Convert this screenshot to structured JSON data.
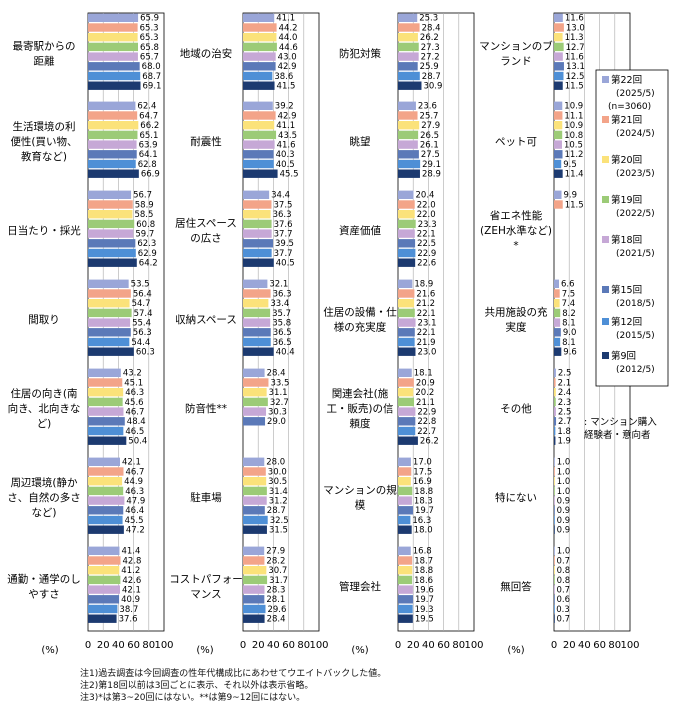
{
  "chart_data": {
    "type": "bar",
    "orientation": "horizontal",
    "xlim": [
      0,
      100
    ],
    "xticks": [
      "0",
      "20",
      "40",
      "60",
      "80",
      "100"
    ],
    "xlabel": "(%)",
    "series": [
      {
        "name": "第22回",
        "period": "(2025/5)",
        "n": "(n=3060)",
        "color": "#9aa6d8"
      },
      {
        "name": "第21回",
        "period": "(2024/5)",
        "color": "#f3a489"
      },
      {
        "name": "第20回",
        "period": "(2023/5)",
        "color": "#fbe27a"
      },
      {
        "name": "第19回",
        "period": "(2022/5)",
        "color": "#9ccb77"
      },
      {
        "name": "第18回",
        "period": "(2021/5)",
        "color": "#c6a8d6"
      },
      {
        "name": "第15回",
        "period": "(2018/5)",
        "color": "#5b79b8"
      },
      {
        "name": "第12回",
        "period": "(2015/5)",
        "color": "#4e8fd6"
      },
      {
        "name": "第9回",
        "period": "(2012/5)",
        "color": "#1c3a70"
      }
    ],
    "panels": [
      {
        "categories": [
          {
            "label": [
              "最寄駅からの",
              "距離"
            ],
            "values": [
              65.9,
              65.3,
              65.3,
              65.8,
              65.7,
              68.0,
              68.7,
              69.1
            ]
          },
          {
            "label": [
              "生活環境の利",
              "便性(買い物、",
              "教育など)"
            ],
            "values": [
              62.4,
              64.7,
              66.2,
              65.1,
              63.9,
              64.1,
              62.8,
              66.9
            ]
          },
          {
            "label": [
              "日当たり・採光"
            ],
            "values": [
              56.7,
              58.9,
              58.5,
              60.8,
              59.7,
              62.3,
              62.9,
              64.2
            ]
          },
          {
            "label": [
              "間取り"
            ],
            "values": [
              53.5,
              56.4,
              54.7,
              57.4,
              55.4,
              56.3,
              54.4,
              60.3
            ]
          },
          {
            "label": [
              "住居の向き(南",
              "向き、北向きな",
              "ど)"
            ],
            "values": [
              43.2,
              45.1,
              46.3,
              45.6,
              46.7,
              48.4,
              46.5,
              50.4
            ]
          },
          {
            "label": [
              "周辺環境(静か",
              "さ、自然の多さ",
              "など)"
            ],
            "values": [
              42.1,
              46.7,
              44.9,
              46.3,
              47.9,
              46.4,
              45.5,
              47.2
            ]
          },
          {
            "label": [
              "通勤・通学のし",
              "やすさ"
            ],
            "values": [
              41.4,
              42.8,
              41.2,
              42.6,
              42.1,
              40.9,
              38.7,
              37.6
            ]
          }
        ]
      },
      {
        "categories": [
          {
            "label": [
              "地域の治安"
            ],
            "values": [
              41.1,
              44.2,
              44.0,
              44.6,
              43.0,
              42.9,
              38.6,
              41.5
            ]
          },
          {
            "label": [
              "耐震性"
            ],
            "values": [
              39.2,
              42.9,
              41.1,
              43.5,
              41.6,
              40.3,
              40.5,
              45.5
            ]
          },
          {
            "label": [
              "居住スペース",
              "の広さ"
            ],
            "values": [
              34.4,
              37.5,
              36.3,
              37.6,
              37.7,
              39.5,
              37.7,
              40.5
            ]
          },
          {
            "label": [
              "収納スペース"
            ],
            "values": [
              32.1,
              36.3,
              33.4,
              35.7,
              35.8,
              36.5,
              36.5,
              40.4
            ]
          },
          {
            "label": [
              "防音性**"
            ],
            "values": [
              28.4,
              33.5,
              31.1,
              32.7,
              30.3,
              29.0,
              null,
              null
            ]
          },
          {
            "label": [
              "駐車場"
            ],
            "values": [
              28.0,
              30.0,
              30.5,
              31.4,
              31.2,
              28.7,
              32.5,
              31.5
            ]
          },
          {
            "label": [
              "コストパフォー",
              "マンス"
            ],
            "values": [
              27.9,
              28.2,
              30.7,
              31.7,
              28.3,
              28.1,
              29.6,
              28.4
            ]
          }
        ]
      },
      {
        "categories": [
          {
            "label": [
              "防犯対策"
            ],
            "values": [
              25.3,
              28.4,
              26.2,
              27.3,
              27.2,
              25.9,
              28.7,
              30.9
            ]
          },
          {
            "label": [
              "眺望"
            ],
            "values": [
              23.6,
              25.7,
              27.9,
              26.5,
              26.1,
              27.5,
              29.1,
              28.9
            ]
          },
          {
            "label": [
              "資産価値"
            ],
            "values": [
              20.4,
              22.0,
              22.0,
              23.3,
              22.1,
              22.5,
              22.9,
              22.6
            ]
          },
          {
            "label": [
              "住居の設備・仕",
              "様の充実度"
            ],
            "values": [
              18.9,
              21.6,
              21.2,
              22.1,
              23.1,
              22.1,
              21.9,
              23.0
            ]
          },
          {
            "label": [
              "関連会社(施",
              "工・販売)の信",
              "頼度"
            ],
            "values": [
              18.1,
              20.9,
              20.2,
              21.1,
              22.9,
              22.8,
              22.7,
              26.2
            ]
          },
          {
            "label": [
              "マンションの規",
              "模"
            ],
            "values": [
              17.0,
              17.5,
              16.9,
              18.8,
              18.3,
              19.7,
              16.3,
              18.0
            ]
          },
          {
            "label": [
              "管理会社"
            ],
            "values": [
              16.8,
              18.7,
              18.8,
              18.6,
              19.6,
              19.7,
              19.3,
              19.5
            ]
          }
        ]
      },
      {
        "categories": [
          {
            "label": [
              "マンションのブ",
              "ランド"
            ],
            "values": [
              11.6,
              13.0,
              11.3,
              12.7,
              11.6,
              13.1,
              12.5,
              11.5
            ]
          },
          {
            "label": [
              "ペット可"
            ],
            "values": [
              10.9,
              11.1,
              10.9,
              10.8,
              10.5,
              11.2,
              9.5,
              11.4
            ]
          },
          {
            "label": [
              "省エネ性能",
              "(ZEH水準など)",
              "*"
            ],
            "values": [
              9.9,
              11.5,
              null,
              null,
              null,
              null,
              null,
              null
            ]
          },
          {
            "label": [
              "共用施設の充",
              "実度"
            ],
            "values": [
              6.6,
              7.5,
              7.4,
              8.2,
              8.1,
              9.0,
              8.1,
              9.6
            ]
          },
          {
            "label": [
              "その他"
            ],
            "values": [
              2.5,
              2.1,
              2.4,
              2.3,
              2.5,
              2.7,
              1.8,
              1.9
            ]
          },
          {
            "label": [
              "特にない"
            ],
            "values": [
              1.0,
              1.0,
              1.0,
              1.0,
              0.9,
              0.9,
              0.9,
              0.9
            ]
          },
          {
            "label": [
              "無回答"
            ],
            "values": [
              1.0,
              0.7,
              0.8,
              0.8,
              0.7,
              0.6,
              0.3,
              0.7
            ]
          }
        ]
      }
    ],
    "side_note": [
      ": マンション購入",
      "経験者・意向者"
    ]
  },
  "notes": [
    "注1)過去調査は今回調査の性年代構成比にあわせてウエイトバックした値。",
    "注2)第18回以前は3回ごとに表示、それ以外は表示省略。",
    "注3)*は第3~20回にはない。**は第9~12回にはない。"
  ]
}
